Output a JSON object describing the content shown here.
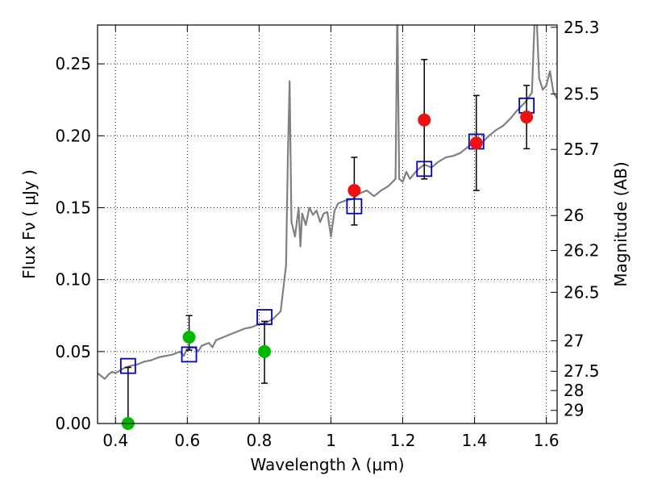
{
  "chart_data": {
    "type": "scatter",
    "xlabel": "Wavelength  λ (μm)",
    "ylabel": "Flux  Fν  ( μJy )",
    "ylabel_right": "Magnitude (AB)",
    "xlim": [
      0.35,
      1.63
    ],
    "ylim": [
      0.0,
      0.277
    ],
    "grid": true,
    "x_ticks": [
      {
        "value": 0.4,
        "label": "0.4"
      },
      {
        "value": 0.6,
        "label": "0.6"
      },
      {
        "value": 0.8,
        "label": "0.8"
      },
      {
        "value": 1.0,
        "label": "1"
      },
      {
        "value": 1.2,
        "label": "1.2"
      },
      {
        "value": 1.4,
        "label": "1.4"
      },
      {
        "value": 1.6,
        "label": "1.6"
      }
    ],
    "y_ticks": [
      {
        "value": 0.0,
        "label": "0.00"
      },
      {
        "value": 0.05,
        "label": "0.05"
      },
      {
        "value": 0.1,
        "label": "0.10"
      },
      {
        "value": 0.15,
        "label": "0.15"
      },
      {
        "value": 0.2,
        "label": "0.20"
      },
      {
        "value": 0.25,
        "label": "0.25"
      }
    ],
    "right_ticks": [
      {
        "value": 25.3,
        "label": "25.3"
      },
      {
        "value": 25.5,
        "label": "25.5"
      },
      {
        "value": 25.7,
        "label": "25.7"
      },
      {
        "value": 26.0,
        "label": "26"
      },
      {
        "value": 26.2,
        "label": "26.2"
      },
      {
        "value": 26.5,
        "label": "26.5"
      },
      {
        "value": 27.0,
        "label": "27"
      },
      {
        "value": 27.5,
        "label": "27.5"
      },
      {
        "value": 28.0,
        "label": "28"
      },
      {
        "value": 29.0,
        "label": "29"
      }
    ],
    "series": [
      {
        "kind": "line",
        "color": "#808080",
        "points": [
          [
            0.35,
            0.035
          ],
          [
            0.36,
            0.033
          ],
          [
            0.37,
            0.031
          ],
          [
            0.38,
            0.034
          ],
          [
            0.39,
            0.036
          ],
          [
            0.4,
            0.035
          ],
          [
            0.42,
            0.038
          ],
          [
            0.44,
            0.04
          ],
          [
            0.46,
            0.041
          ],
          [
            0.48,
            0.043
          ],
          [
            0.5,
            0.044
          ],
          [
            0.52,
            0.046
          ],
          [
            0.54,
            0.047
          ],
          [
            0.56,
            0.048
          ],
          [
            0.58,
            0.05
          ],
          [
            0.59,
            0.047
          ],
          [
            0.6,
            0.052
          ],
          [
            0.62,
            0.053
          ],
          [
            0.63,
            0.05
          ],
          [
            0.64,
            0.054
          ],
          [
            0.66,
            0.056
          ],
          [
            0.67,
            0.053
          ],
          [
            0.68,
            0.058
          ],
          [
            0.7,
            0.06
          ],
          [
            0.72,
            0.062
          ],
          [
            0.74,
            0.064
          ],
          [
            0.76,
            0.066
          ],
          [
            0.78,
            0.067
          ],
          [
            0.8,
            0.069
          ],
          [
            0.82,
            0.07
          ],
          [
            0.84,
            0.073
          ],
          [
            0.86,
            0.078
          ],
          [
            0.875,
            0.11
          ],
          [
            0.88,
            0.185
          ],
          [
            0.885,
            0.238
          ],
          [
            0.89,
            0.14
          ],
          [
            0.9,
            0.13
          ],
          [
            0.91,
            0.15
          ],
          [
            0.915,
            0.123
          ],
          [
            0.92,
            0.146
          ],
          [
            0.93,
            0.138
          ],
          [
            0.94,
            0.15
          ],
          [
            0.95,
            0.145
          ],
          [
            0.96,
            0.148
          ],
          [
            0.97,
            0.14
          ],
          [
            0.98,
            0.146
          ],
          [
            0.99,
            0.147
          ],
          [
            1.0,
            0.13
          ],
          [
            1.01,
            0.148
          ],
          [
            1.02,
            0.153
          ],
          [
            1.04,
            0.155
          ],
          [
            1.06,
            0.156
          ],
          [
            1.08,
            0.16
          ],
          [
            1.1,
            0.162
          ],
          [
            1.12,
            0.158
          ],
          [
            1.14,
            0.162
          ],
          [
            1.16,
            0.165
          ],
          [
            1.18,
            0.17
          ],
          [
            1.185,
            0.29
          ],
          [
            1.19,
            0.17
          ],
          [
            1.2,
            0.168
          ],
          [
            1.21,
            0.175
          ],
          [
            1.22,
            0.17
          ],
          [
            1.24,
            0.176
          ],
          [
            1.26,
            0.18
          ],
          [
            1.28,
            0.178
          ],
          [
            1.3,
            0.182
          ],
          [
            1.32,
            0.185
          ],
          [
            1.34,
            0.186
          ],
          [
            1.36,
            0.188
          ],
          [
            1.38,
            0.192
          ],
          [
            1.4,
            0.196
          ],
          [
            1.42,
            0.195
          ],
          [
            1.44,
            0.2
          ],
          [
            1.46,
            0.204
          ],
          [
            1.48,
            0.207
          ],
          [
            1.5,
            0.212
          ],
          [
            1.52,
            0.218
          ],
          [
            1.54,
            0.223
          ],
          [
            1.56,
            0.23
          ],
          [
            1.57,
            0.3
          ],
          [
            1.58,
            0.24
          ],
          [
            1.59,
            0.232
          ],
          [
            1.6,
            0.235
          ],
          [
            1.61,
            0.245
          ],
          [
            1.62,
            0.23
          ],
          [
            1.63,
            0.226
          ]
        ]
      },
      {
        "kind": "model",
        "marker": "open-square",
        "color": "#0000cc",
        "x": [
          0.435,
          0.605,
          0.815,
          1.065,
          1.26,
          1.405,
          1.545
        ],
        "y": [
          0.04,
          0.048,
          0.074,
          0.151,
          0.177,
          0.196,
          0.221
        ]
      },
      {
        "kind": "observed",
        "marker": "filled-circle",
        "color": "#00b800",
        "x": [
          0.435,
          0.605,
          0.815
        ],
        "y": [
          0.0,
          0.06,
          0.05
        ],
        "yerr_low": [
          0.0,
          0.051,
          0.028
        ],
        "yerr_high": [
          0.039,
          0.075,
          0.071
        ]
      },
      {
        "kind": "observed",
        "marker": "filled-circle",
        "color": "#ee1111",
        "x": [
          1.065,
          1.26,
          1.405,
          1.545
        ],
        "y": [
          0.162,
          0.211,
          0.195,
          0.213
        ],
        "yerr_low": [
          0.138,
          0.17,
          0.162,
          0.191
        ],
        "yerr_high": [
          0.185,
          0.253,
          0.228,
          0.235
        ]
      }
    ]
  }
}
